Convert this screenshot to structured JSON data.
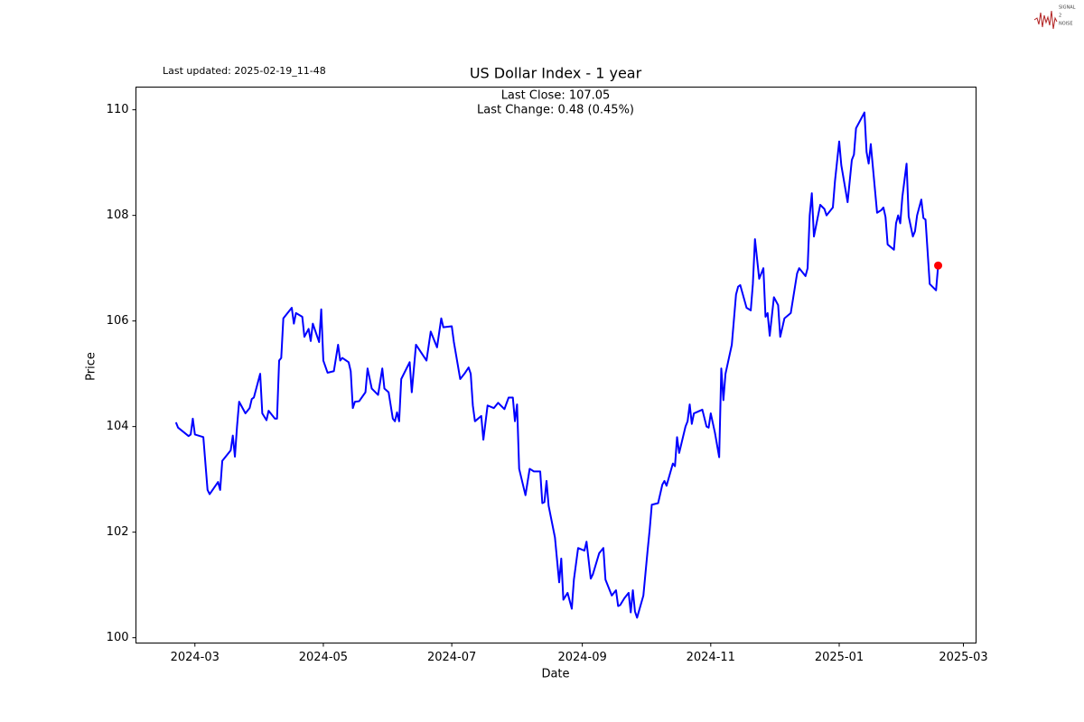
{
  "logo": [
    "SIGNAL",
    "2",
    "NOISE"
  ],
  "chart_data": {
    "type": "line",
    "title": "US Dollar Index - 1 year",
    "subtitle": "Last updated: 2025-02-19_11-48",
    "annotations": [
      "Last Close: 107.05",
      "Last Change: 0.48 (0.45%)"
    ],
    "xlabel": "Date",
    "ylabel": "Price",
    "xlim": [
      32,
      431
    ],
    "ylim": [
      99.9,
      110.43
    ],
    "xticks": [
      {
        "value": 60,
        "label": "2024-03"
      },
      {
        "value": 121,
        "label": "2024-05"
      },
      {
        "value": 182,
        "label": "2024-07"
      },
      {
        "value": 244,
        "label": "2024-09"
      },
      {
        "value": 305,
        "label": "2024-11"
      },
      {
        "value": 366,
        "label": "2025-01"
      },
      {
        "value": 425,
        "label": "2025-03"
      }
    ],
    "yticks": [
      100,
      102,
      104,
      106,
      108,
      110
    ],
    "grid": false,
    "series": [
      {
        "color": "#0000ff",
        "marker": false,
        "x": [
          51,
          52,
          57,
          58,
          59,
          60,
          64,
          66,
          67,
          71,
          72,
          73,
          77,
          78,
          79,
          80,
          81,
          84,
          86,
          87,
          88,
          91,
          92,
          94,
          95,
          98,
          99,
          100,
          101,
          102,
          106,
          107,
          108,
          111,
          112,
          114,
          115,
          116,
          119,
          120,
          121,
          123,
          126,
          128,
          129,
          130,
          133,
          134,
          135,
          136,
          138,
          141,
          142,
          144,
          147,
          149,
          150,
          152,
          154,
          155,
          156,
          157,
          158,
          162,
          163,
          165,
          170,
          172,
          175,
          177,
          178,
          182,
          183,
          186,
          188,
          190,
          191,
          192,
          193,
          196,
          197,
          199,
          202,
          204,
          207,
          209,
          211,
          212,
          213,
          214,
          217,
          219,
          221,
          224,
          225,
          226,
          227,
          228,
          231,
          233,
          234,
          235,
          237,
          239,
          240,
          242,
          245,
          246,
          248,
          249,
          252,
          254,
          255,
          258,
          260,
          261,
          262,
          264,
          266,
          267,
          268,
          269,
          270,
          273,
          275,
          276,
          277,
          280,
          282,
          283,
          284,
          287,
          288,
          289,
          290,
          293,
          294,
          295,
          296,
          297,
          301,
          303,
          304,
          305,
          307,
          309,
          310,
          311,
          312,
          315,
          317,
          318,
          319,
          322,
          324,
          325,
          326,
          328,
          330,
          331,
          332,
          333,
          335,
          337,
          338,
          340,
          343,
          346,
          347,
          350,
          351,
          352,
          353,
          354,
          355,
          357,
          359,
          360,
          363,
          364,
          366,
          367,
          370,
          372,
          373,
          374,
          378,
          379,
          380,
          381,
          384,
          386,
          387,
          388,
          389,
          392,
          393,
          394,
          395,
          396,
          398,
          399,
          401,
          402,
          403,
          405,
          406,
          407,
          409,
          412,
          413
        ],
        "values": [
          104.08,
          103.98,
          103.82,
          103.85,
          104.15,
          103.85,
          103.8,
          102.8,
          102.72,
          102.95,
          102.8,
          103.35,
          103.55,
          103.83,
          103.43,
          104.0,
          104.47,
          104.25,
          104.35,
          104.52,
          104.55,
          105.0,
          104.25,
          104.12,
          104.3,
          104.15,
          104.15,
          105.25,
          105.3,
          106.05,
          106.25,
          105.95,
          106.15,
          106.08,
          105.7,
          105.85,
          105.62,
          105.95,
          105.6,
          106.22,
          105.25,
          105.02,
          105.05,
          105.55,
          105.25,
          105.3,
          105.22,
          105.05,
          104.35,
          104.47,
          104.48,
          104.65,
          105.1,
          104.72,
          104.6,
          105.1,
          104.72,
          104.65,
          104.15,
          104.1,
          104.27,
          104.1,
          104.9,
          105.22,
          104.65,
          105.55,
          105.25,
          105.8,
          105.5,
          106.05,
          105.88,
          105.9,
          105.6,
          104.9,
          105.0,
          105.12,
          105.0,
          104.4,
          104.1,
          104.2,
          103.75,
          104.4,
          104.35,
          104.45,
          104.33,
          104.55,
          104.55,
          104.1,
          104.42,
          103.2,
          102.7,
          103.2,
          103.15,
          103.15,
          102.55,
          102.57,
          102.97,
          102.5,
          101.9,
          101.05,
          101.5,
          100.72,
          100.85,
          100.55,
          101.1,
          101.7,
          101.65,
          101.82,
          101.12,
          101.2,
          101.6,
          101.7,
          101.1,
          100.8,
          100.9,
          100.6,
          100.62,
          100.75,
          100.85,
          100.48,
          100.9,
          100.5,
          100.38,
          100.8,
          101.65,
          102.05,
          102.52,
          102.55,
          102.9,
          102.97,
          102.88,
          103.3,
          103.25,
          103.8,
          103.5,
          104.0,
          104.1,
          104.42,
          104.05,
          104.25,
          104.32,
          104.0,
          103.98,
          104.25,
          103.88,
          103.42,
          105.1,
          104.5,
          105.0,
          105.55,
          106.5,
          106.65,
          106.68,
          106.25,
          106.2,
          106.7,
          107.55,
          106.8,
          107.0,
          106.08,
          106.15,
          105.72,
          106.45,
          106.3,
          105.7,
          106.05,
          106.15,
          106.9,
          107.0,
          106.85,
          107.0,
          108.0,
          108.42,
          107.6,
          107.8,
          108.2,
          108.12,
          108.0,
          108.15,
          108.65,
          109.4,
          108.95,
          108.25,
          109.05,
          109.15,
          109.65,
          109.95,
          109.2,
          108.98,
          109.35,
          108.05,
          108.1,
          108.15,
          107.97,
          107.45,
          107.35,
          107.85,
          108.0,
          107.85,
          108.35,
          108.98,
          107.98,
          107.6,
          107.7,
          108.0,
          108.3,
          107.95,
          107.92,
          106.7,
          106.58,
          107.05
        ]
      },
      {
        "color": "#ff0000",
        "marker": true,
        "x": [
          413
        ],
        "values": [
          107.05
        ]
      }
    ]
  }
}
